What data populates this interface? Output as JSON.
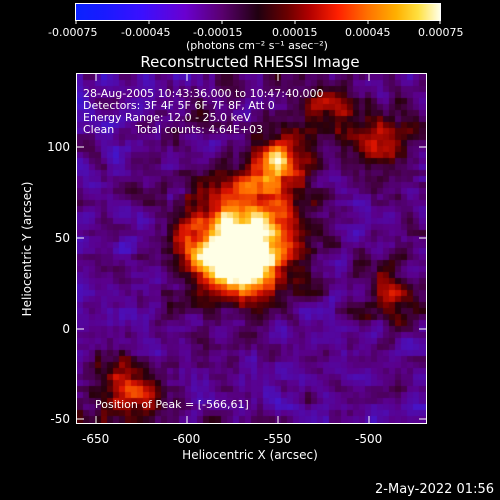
{
  "colorbar": {
    "tick_labels": [
      "-0.00075",
      "-0.00045",
      "-0.00015",
      "0.00015",
      "0.00045",
      "0.00075"
    ],
    "units_label": "(photons cm⁻² s⁻¹ asec⁻²)"
  },
  "title": "Reconstructed RHESSI Image",
  "legend": {
    "time_range": "28-Aug-2005 10:43:36.000 to 10:47:40.000",
    "detectors": "Detectors: 3F 4F 5F 6F 7F 8F, Att 0",
    "energy_range": "Energy Range: 12.0 - 25.0 keV",
    "method_counts": "Clean      Total counts: 4.64E+03"
  },
  "peak_label": "Position of Peak = [-566,61]",
  "axes": {
    "xlabel": "Heliocentric X (arcsec)",
    "ylabel": "Heliocentric Y (arcsec)",
    "x_ticks": [
      "-650",
      "-600",
      "-550",
      "-500"
    ],
    "y_ticks": [
      "100",
      "50",
      "0",
      "-50"
    ]
  },
  "timestamp": "2-May-2022 01:56"
}
